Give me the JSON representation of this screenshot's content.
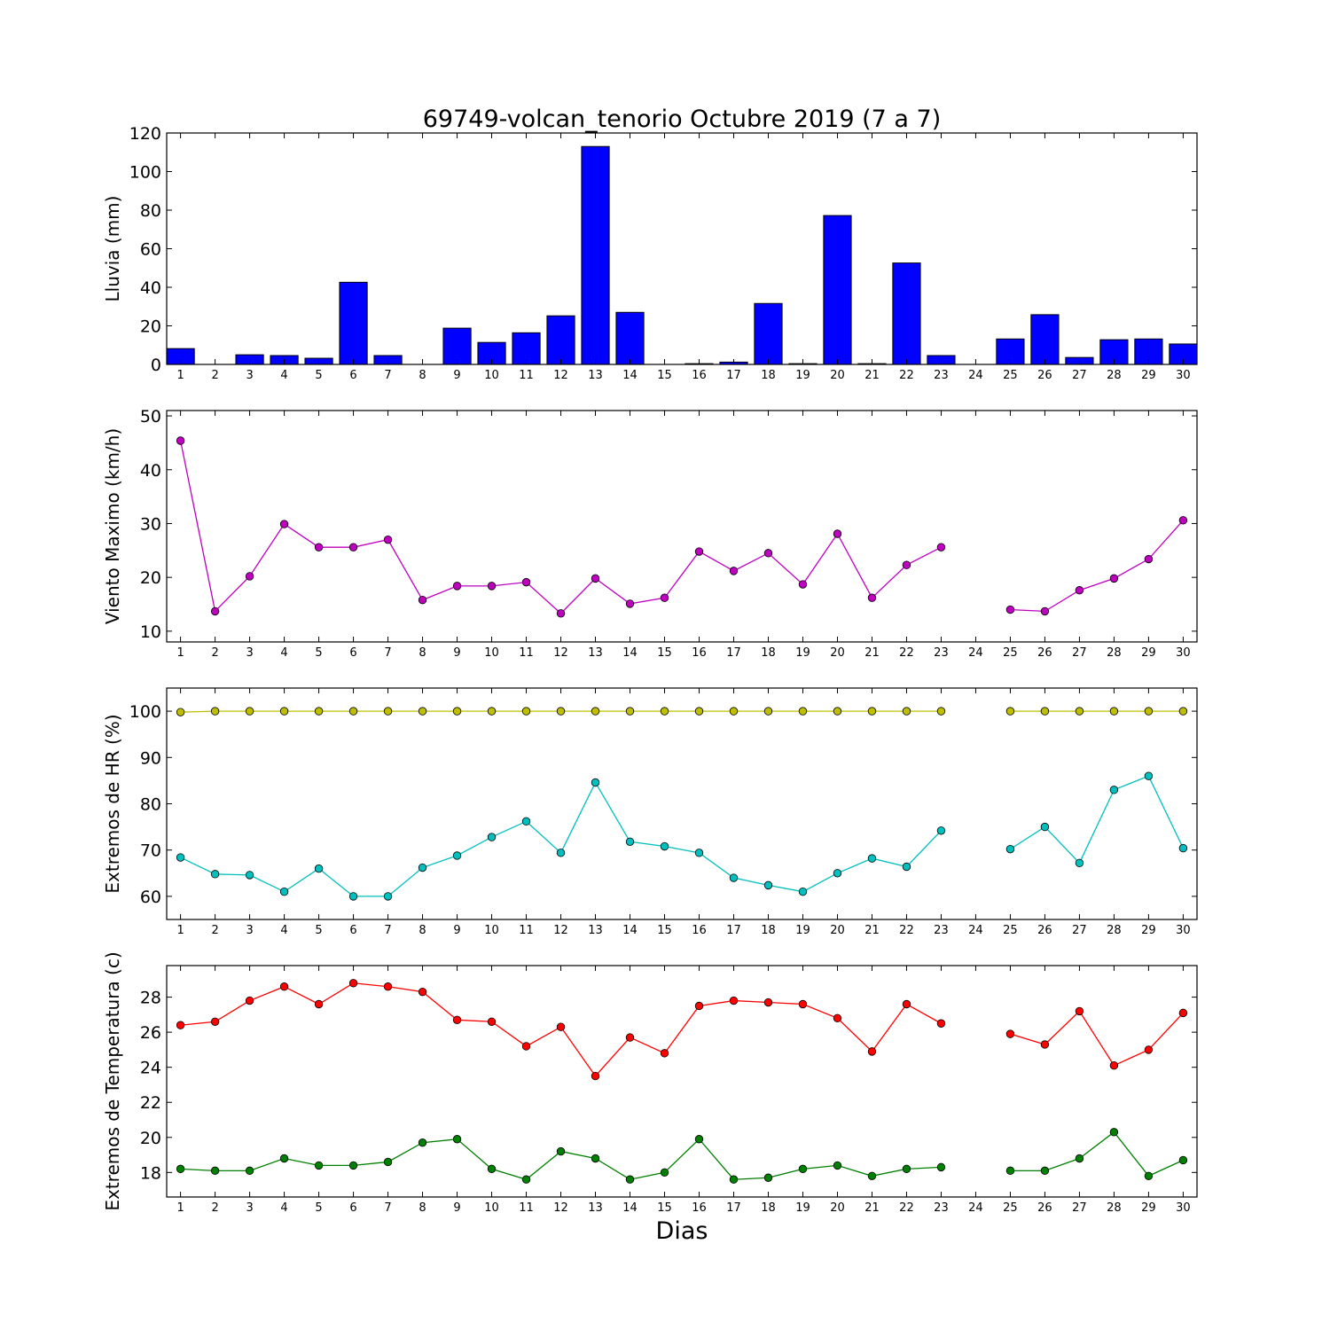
{
  "figure": {
    "title": "69749-volcan_tenorio Octubre 2019  (7 a 7)",
    "xlabel": "Dias"
  },
  "chart_data": [
    {
      "type": "bar",
      "ylabel": "Lluvia (mm)",
      "ylim": [
        0,
        120
      ],
      "yticks": [
        0,
        20,
        40,
        60,
        80,
        100,
        120
      ],
      "xlim": [
        0.6,
        30.4
      ],
      "categories": [
        1,
        2,
        3,
        4,
        5,
        6,
        7,
        8,
        9,
        10,
        11,
        12,
        13,
        14,
        15,
        16,
        17,
        18,
        19,
        20,
        21,
        22,
        23,
        24,
        25,
        26,
        27,
        28,
        29,
        30
      ],
      "values": [
        8.2,
        0,
        5,
        4.6,
        3.2,
        42.6,
        4.6,
        0,
        18.8,
        11.4,
        16.4,
        25.2,
        113,
        27,
        0,
        0.4,
        1.2,
        31.6,
        0.4,
        77.2,
        0.4,
        52.6,
        4.6,
        0,
        13.2,
        25.8,
        3.6,
        12.8,
        13.2,
        10.6
      ],
      "color": "#0000ff",
      "grid": false
    },
    {
      "type": "line",
      "ylabel": "Viento Maximo (km/h)",
      "ylim": [
        8,
        51
      ],
      "yticks": [
        10,
        20,
        30,
        40,
        50
      ],
      "xlim": [
        0.6,
        30.4
      ],
      "x": [
        1,
        2,
        3,
        4,
        5,
        6,
        7,
        8,
        9,
        10,
        11,
        12,
        13,
        14,
        15,
        16,
        17,
        18,
        19,
        20,
        21,
        22,
        23,
        24,
        25,
        26,
        27,
        28,
        29,
        30
      ],
      "series": [
        {
          "values": [
            45.4,
            13.7,
            20.2,
            29.9,
            25.6,
            25.6,
            27.0,
            15.8,
            18.4,
            18.4,
            19.1,
            13.3,
            19.8,
            15.1,
            16.2,
            24.8,
            21.2,
            24.5,
            18.7,
            28.1,
            16.2,
            22.3,
            25.6,
            null,
            14.0,
            13.7,
            17.6,
            19.8,
            23.4,
            30.6
          ],
          "color": "#bf00bf"
        }
      ],
      "grid": false
    },
    {
      "type": "line",
      "ylabel": "Extremos de HR (%)",
      "ylim": [
        55,
        105
      ],
      "yticks": [
        60,
        70,
        80,
        90,
        100
      ],
      "xlim": [
        0.6,
        30.4
      ],
      "x": [
        1,
        2,
        3,
        4,
        5,
        6,
        7,
        8,
        9,
        10,
        11,
        12,
        13,
        14,
        15,
        16,
        17,
        18,
        19,
        20,
        21,
        22,
        23,
        24,
        25,
        26,
        27,
        28,
        29,
        30
      ],
      "series": [
        {
          "values": [
            99.8,
            100,
            100,
            100,
            100,
            100,
            100,
            100,
            100,
            100,
            100,
            100,
            100,
            100,
            100,
            100,
            100,
            100,
            100,
            100,
            100,
            100,
            100,
            null,
            100,
            100,
            100,
            100,
            100,
            100
          ],
          "color": "#bfbf00"
        },
        {
          "values": [
            68.4,
            64.8,
            64.6,
            61.0,
            66.0,
            60.0,
            60.0,
            66.2,
            68.8,
            72.8,
            76.2,
            69.4,
            84.6,
            71.8,
            70.8,
            69.4,
            64.0,
            62.4,
            61.0,
            65.0,
            68.2,
            66.4,
            74.2,
            null,
            70.2,
            75.0,
            67.2,
            83.0,
            86.0,
            70.4
          ],
          "color": "#00bfbf"
        }
      ],
      "grid": false
    },
    {
      "type": "line",
      "ylabel": "Extremos de Temperatura (c)",
      "ylim": [
        16.6,
        29.8
      ],
      "yticks": [
        18,
        20,
        22,
        24,
        26,
        28
      ],
      "xlim": [
        0.6,
        30.4
      ],
      "x": [
        1,
        2,
        3,
        4,
        5,
        6,
        7,
        8,
        9,
        10,
        11,
        12,
        13,
        14,
        15,
        16,
        17,
        18,
        19,
        20,
        21,
        22,
        23,
        24,
        25,
        26,
        27,
        28,
        29,
        30
      ],
      "series": [
        {
          "values": [
            26.4,
            26.6,
            27.8,
            28.6,
            27.6,
            28.8,
            28.6,
            28.3,
            26.7,
            26.6,
            25.2,
            26.3,
            23.5,
            25.7,
            24.8,
            27.5,
            27.8,
            27.7,
            27.6,
            26.8,
            24.9,
            27.6,
            26.5,
            null,
            25.9,
            25.3,
            27.2,
            24.1,
            25.0,
            27.1
          ],
          "color": "#ff0000"
        },
        {
          "values": [
            18.2,
            18.1,
            18.1,
            18.8,
            18.4,
            18.4,
            18.6,
            19.7,
            19.9,
            18.2,
            17.6,
            19.2,
            18.8,
            17.6,
            18.0,
            19.9,
            17.6,
            17.7,
            18.2,
            18.4,
            17.8,
            18.2,
            18.3,
            null,
            18.1,
            18.1,
            18.8,
            20.3,
            17.8,
            18.7
          ],
          "color": "#008000"
        }
      ],
      "grid": false
    }
  ]
}
